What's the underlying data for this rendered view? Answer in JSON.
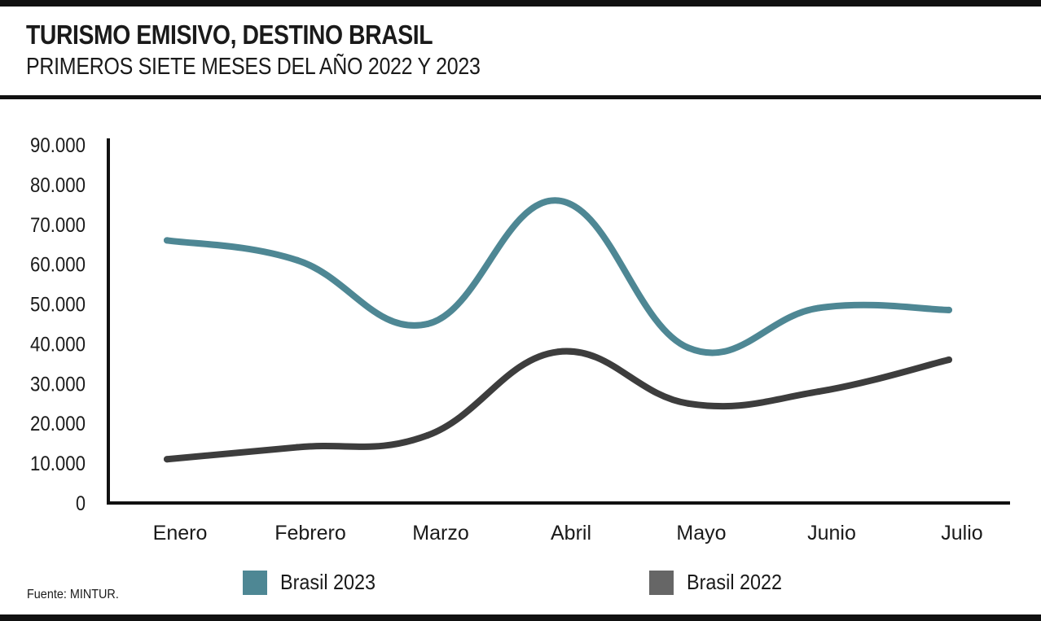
{
  "header": {
    "title": "TURISMO EMISIVO, DESTINO BRASIL",
    "subtitle": "PRIMEROS SIETE MESES DEL AÑO 2022 Y 2023"
  },
  "footer": {
    "source": "Fuente: MINTUR."
  },
  "colors": {
    "brasil_2023": "#4e8794",
    "brasil_2022": "#3d3d3d",
    "legend_2022": "#666666",
    "axis": "#111111"
  },
  "chart_data": {
    "type": "line",
    "title": "TURISMO EMISIVO, DESTINO BRASIL",
    "subtitle": "PRIMEROS SIETE MESES DEL AÑO 2022 Y 2023",
    "categories": [
      "Enero",
      "Febrero",
      "Marzo",
      "Abril",
      "Mayo",
      "Junio",
      "Julio"
    ],
    "yticks": [
      "0",
      "10.000",
      "20.000",
      "30.000",
      "40.000",
      "50.000",
      "60.000",
      "70.000",
      "80.000",
      "90.000"
    ],
    "ylim": [
      0,
      90000
    ],
    "grid": false,
    "legend": "bottom",
    "series": [
      {
        "name": "Brasil 2023",
        "color": "#4e8794",
        "values": [
          66000,
          61000,
          45000,
          76000,
          39000,
          49000,
          48500
        ]
      },
      {
        "name": "Brasil 2022",
        "color": "#3d3d3d",
        "values": [
          11000,
          14000,
          17000,
          38000,
          25000,
          28000,
          36000
        ]
      }
    ]
  }
}
